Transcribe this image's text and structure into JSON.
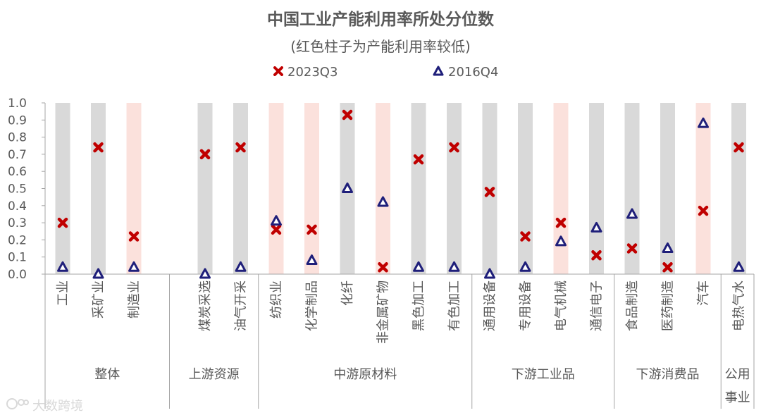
{
  "chart_data": {
    "type": "scatter",
    "title": "中国工业产能利用率所处分位数",
    "subtitle": "(红色柱子为产能利用率较低)",
    "ylim": [
      0,
      1.0
    ],
    "y_ticks": [
      "1.0",
      "0.9",
      "0.8",
      "0.7",
      "0.6",
      "0.5",
      "0.4",
      "0.3",
      "0.2",
      "0.1",
      "0.0"
    ],
    "categories": [
      "工业",
      "采矿业",
      "制造业",
      "煤炭采选",
      "油气开采",
      "纺织业",
      "化学制品",
      "化纤",
      "非金属矿物",
      "黑色加工",
      "有色加工",
      "通用设备",
      "专用设备",
      "电气机械",
      "通信电子",
      "食品制造",
      "医药制造",
      "汽车",
      "电热气水"
    ],
    "low_utilization": [
      false,
      false,
      true,
      false,
      false,
      true,
      true,
      false,
      true,
      false,
      false,
      false,
      false,
      true,
      false,
      false,
      false,
      true,
      false
    ],
    "series": [
      {
        "name": "2023Q3",
        "color": "#c00000",
        "marker": "x",
        "values": [
          0.3,
          0.74,
          0.22,
          0.7,
          0.74,
          0.26,
          0.26,
          0.93,
          0.04,
          0.67,
          0.74,
          0.48,
          0.22,
          0.3,
          0.11,
          0.15,
          0.04,
          0.37,
          0.74
        ]
      },
      {
        "name": "2016Q4",
        "color": "#1f1f7a",
        "marker": "triangle",
        "values": [
          0.04,
          0.0,
          0.04,
          0.0,
          0.04,
          0.31,
          0.08,
          0.5,
          0.42,
          0.04,
          0.04,
          0.0,
          0.04,
          0.19,
          0.27,
          0.35,
          0.15,
          0.88,
          0.04
        ]
      }
    ],
    "groups": [
      {
        "label": "整体",
        "start": 0,
        "end": 2
      },
      {
        "label": "上游资源",
        "start": 3,
        "end": 4
      },
      {
        "label": "中游原材料",
        "start": 5,
        "end": 10
      },
      {
        "label": "下游工业品",
        "start": 11,
        "end": 14
      },
      {
        "label": "下游消费品",
        "start": 15,
        "end": 17
      },
      {
        "label": "公用事业",
        "start": 18,
        "end": 18
      }
    ],
    "colors": {
      "bar_normal": "#d9d9d9",
      "bar_low": "#fbe1dc",
      "axis": "#a6a6a6",
      "text": "#595959"
    }
  },
  "legend": {
    "s1": "2023Q3",
    "s2": "2016Q4"
  },
  "watermark": "大数跨境"
}
